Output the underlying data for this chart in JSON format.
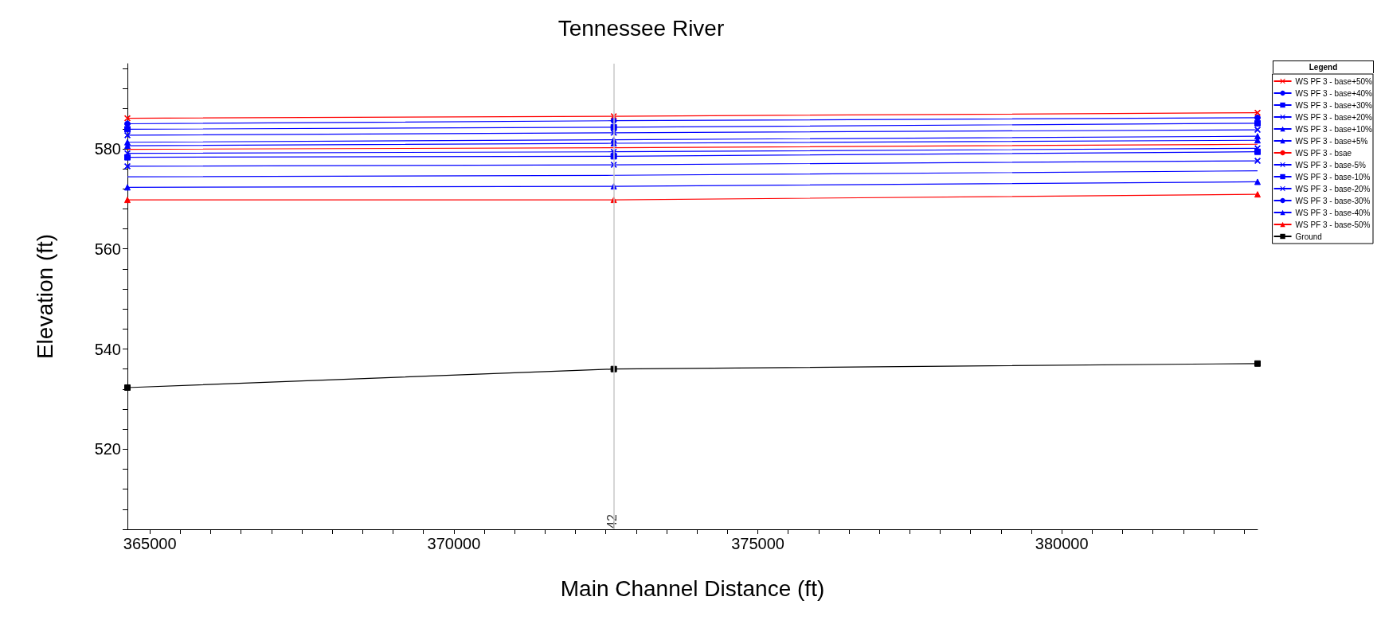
{
  "chart_data": {
    "type": "line",
    "title": "Tennessee River",
    "xlabel": "Main Channel Distance (ft)",
    "ylabel": "Elevation (ft)",
    "legend_title": "Legend",
    "legend": "right",
    "grid": false,
    "x": [
      364630,
      372630,
      383220
    ],
    "series": [
      {
        "name": "WS PF 3 - base+50%",
        "color": "#ff0000",
        "marker": "cross",
        "values": [
          586.1,
          586.5,
          587.2
        ]
      },
      {
        "name": "WS PF 3 - base+40%",
        "color": "#0000ff",
        "marker": "circle",
        "values": [
          585.0,
          585.6,
          586.2
        ]
      },
      {
        "name": "WS PF 3 - base+30%",
        "color": "#0000ff",
        "marker": "square",
        "values": [
          583.9,
          584.3,
          585.1
        ]
      },
      {
        "name": "WS PF 3 - base+20%",
        "color": "#0000ff",
        "marker": "cross",
        "values": [
          582.7,
          583.2,
          583.8
        ]
      },
      {
        "name": "WS PF 3 - base+10%",
        "color": "#0000ff",
        "marker": "triangle",
        "values": [
          581.3,
          581.8,
          582.5
        ]
      },
      {
        "name": "WS PF 3 - base+5%",
        "color": "#0000ff",
        "marker": "triangle",
        "values": [
          580.6,
          581.1,
          581.7
        ]
      },
      {
        "name": "WS PF 3 - bsae",
        "color": "#ff0000",
        "marker": "none",
        "values": [
          579.9,
          580.2,
          580.9
        ]
      },
      {
        "name": "WS PF 3 - base-5%",
        "color": "#0000ff",
        "marker": "cross",
        "values": [
          579.1,
          579.4,
          580.1
        ]
      },
      {
        "name": "WS PF 3 - base-10%",
        "color": "#0000ff",
        "marker": "square",
        "values": [
          578.3,
          578.5,
          579.4
        ]
      },
      {
        "name": "WS PF 3 - base-20%",
        "color": "#0000ff",
        "marker": "cross",
        "values": [
          576.5,
          576.8,
          577.6
        ]
      },
      {
        "name": "WS PF 3 - base-30%",
        "color": "#0000ff",
        "marker": "none",
        "values": [
          574.4,
          574.7,
          575.6
        ]
      },
      {
        "name": "WS PF 3 - base-40%",
        "color": "#0000ff",
        "marker": "triangle",
        "values": [
          572.3,
          572.5,
          573.4
        ]
      },
      {
        "name": "WS PF 3 - base-50%",
        "color": "#ff0000",
        "marker": "triangle",
        "values": [
          569.8,
          569.8,
          570.9
        ]
      },
      {
        "name": "Ground",
        "color": "#000000",
        "marker": "square",
        "values": [
          532.3,
          536.0,
          537.1
        ]
      }
    ],
    "ref_lines": [
      {
        "axis": "x",
        "value": 372630,
        "color": "#c8c8c8"
      }
    ],
    "annotations": [
      {
        "text": "42",
        "x": 372630,
        "y": 507
      }
    ],
    "xlim": [
      364630,
      383220
    ],
    "xticks": [
      365000,
      {
        "value": 365500,
        "label": null
      },
      {
        "value": 366000,
        "label": null
      },
      {
        "value": 366500,
        "label": null
      },
      {
        "value": 367000,
        "label": null
      },
      {
        "value": 367500,
        "label": null
      },
      {
        "value": 368000,
        "label": null
      },
      {
        "value": 368500,
        "label": null
      },
      {
        "value": 369000,
        "label": null
      },
      {
        "value": 369500,
        "label": null
      },
      370000,
      {
        "value": 370500,
        "label": null
      },
      {
        "value": 371000,
        "label": null
      },
      {
        "value": 371500,
        "label": null
      },
      {
        "value": 372000,
        "label": null
      },
      {
        "value": 372500,
        "label": null
      },
      {
        "value": 373000,
        "label": null
      },
      {
        "value": 373500,
        "label": null
      },
      {
        "value": 374000,
        "label": null
      },
      {
        "value": 374500,
        "label": null
      },
      375000,
      {
        "value": 375500,
        "label": null
      },
      {
        "value": 376000,
        "label": null
      },
      {
        "value": 376500,
        "label": null
      },
      {
        "value": 377000,
        "label": null
      },
      {
        "value": 377500,
        "label": null
      },
      {
        "value": 378000,
        "label": null
      },
      {
        "value": 378500,
        "label": null
      },
      {
        "value": 379000,
        "label": null
      },
      {
        "value": 379500,
        "label": null
      },
      380000,
      {
        "value": 380500,
        "label": null
      },
      {
        "value": 381000,
        "label": null
      },
      {
        "value": 381500,
        "label": null
      },
      {
        "value": 382000,
        "label": null
      },
      {
        "value": 382500,
        "label": null
      },
      {
        "value": 383000,
        "label": null
      }
    ],
    "ylim": [
      504,
      597
    ],
    "yticks": [
      {
        "value": 504,
        "label": null
      },
      {
        "value": 508,
        "label": null
      },
      {
        "value": 512,
        "label": null
      },
      {
        "value": 516,
        "label": null
      },
      520,
      {
        "value": 524,
        "label": null
      },
      {
        "value": 528,
        "label": null
      },
      {
        "value": 532,
        "label": null
      },
      {
        "value": 536,
        "label": null
      },
      540,
      {
        "value": 544,
        "label": null
      },
      {
        "value": 548,
        "label": null
      },
      {
        "value": 552,
        "label": null
      },
      {
        "value": 556,
        "label": null
      },
      560,
      {
        "value": 564,
        "label": null
      },
      {
        "value": 568,
        "label": null
      },
      {
        "value": 572,
        "label": null
      },
      {
        "value": 576,
        "label": null
      },
      580,
      {
        "value": 584,
        "label": null
      },
      {
        "value": 588,
        "label": null
      },
      {
        "value": 592,
        "label": null
      },
      {
        "value": 596,
        "label": null
      }
    ]
  }
}
